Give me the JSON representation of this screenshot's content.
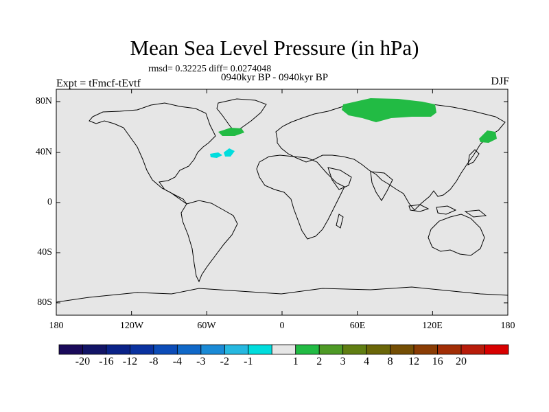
{
  "title": "Mean Sea Level Pressure (in hPa)",
  "stats": "rmsd= 0.32225 diff= 0.0274048",
  "period": "0940kyr BP - 0940kyr BP",
  "experiment": "Expt = tFmcf-tEvtf",
  "season": "DJF",
  "map": {
    "background_color": "#e6e6e6",
    "lat_labels": [
      "80N",
      "40N",
      "0",
      "40S",
      "80S"
    ],
    "lon_labels": [
      "180",
      "120W",
      "60W",
      "0",
      "60E",
      "120E",
      "180"
    ],
    "anomaly_regions": [
      {
        "name": "northern-eurasia",
        "level": "2",
        "color": "#22bb44"
      },
      {
        "name": "north-atlantic",
        "level": "2",
        "color": "#22bb44"
      },
      {
        "name": "kamchatka",
        "level": "2",
        "color": "#22bb44"
      },
      {
        "name": "subtropical-atlantic",
        "level": "-1",
        "color": "#00dddd"
      }
    ]
  },
  "colorbar": {
    "colors": [
      "#1a0a5a",
      "#121466",
      "#0a2288",
      "#0a32a0",
      "#0c4cb8",
      "#1068c8",
      "#1a8ad6",
      "#26b8e0",
      "#00dddd",
      "#e6e6e6",
      "#22bb44",
      "#4e9a26",
      "#607e12",
      "#6a6608",
      "#744e04",
      "#8a3c04",
      "#a22e06",
      "#b81c0a",
      "#d80000"
    ],
    "labels": [
      "-20",
      "-16",
      "-12",
      "-8",
      "-4",
      "-3",
      "-2",
      "-1",
      "1",
      "2",
      "3",
      "4",
      "8",
      "12",
      "16",
      "20"
    ]
  }
}
